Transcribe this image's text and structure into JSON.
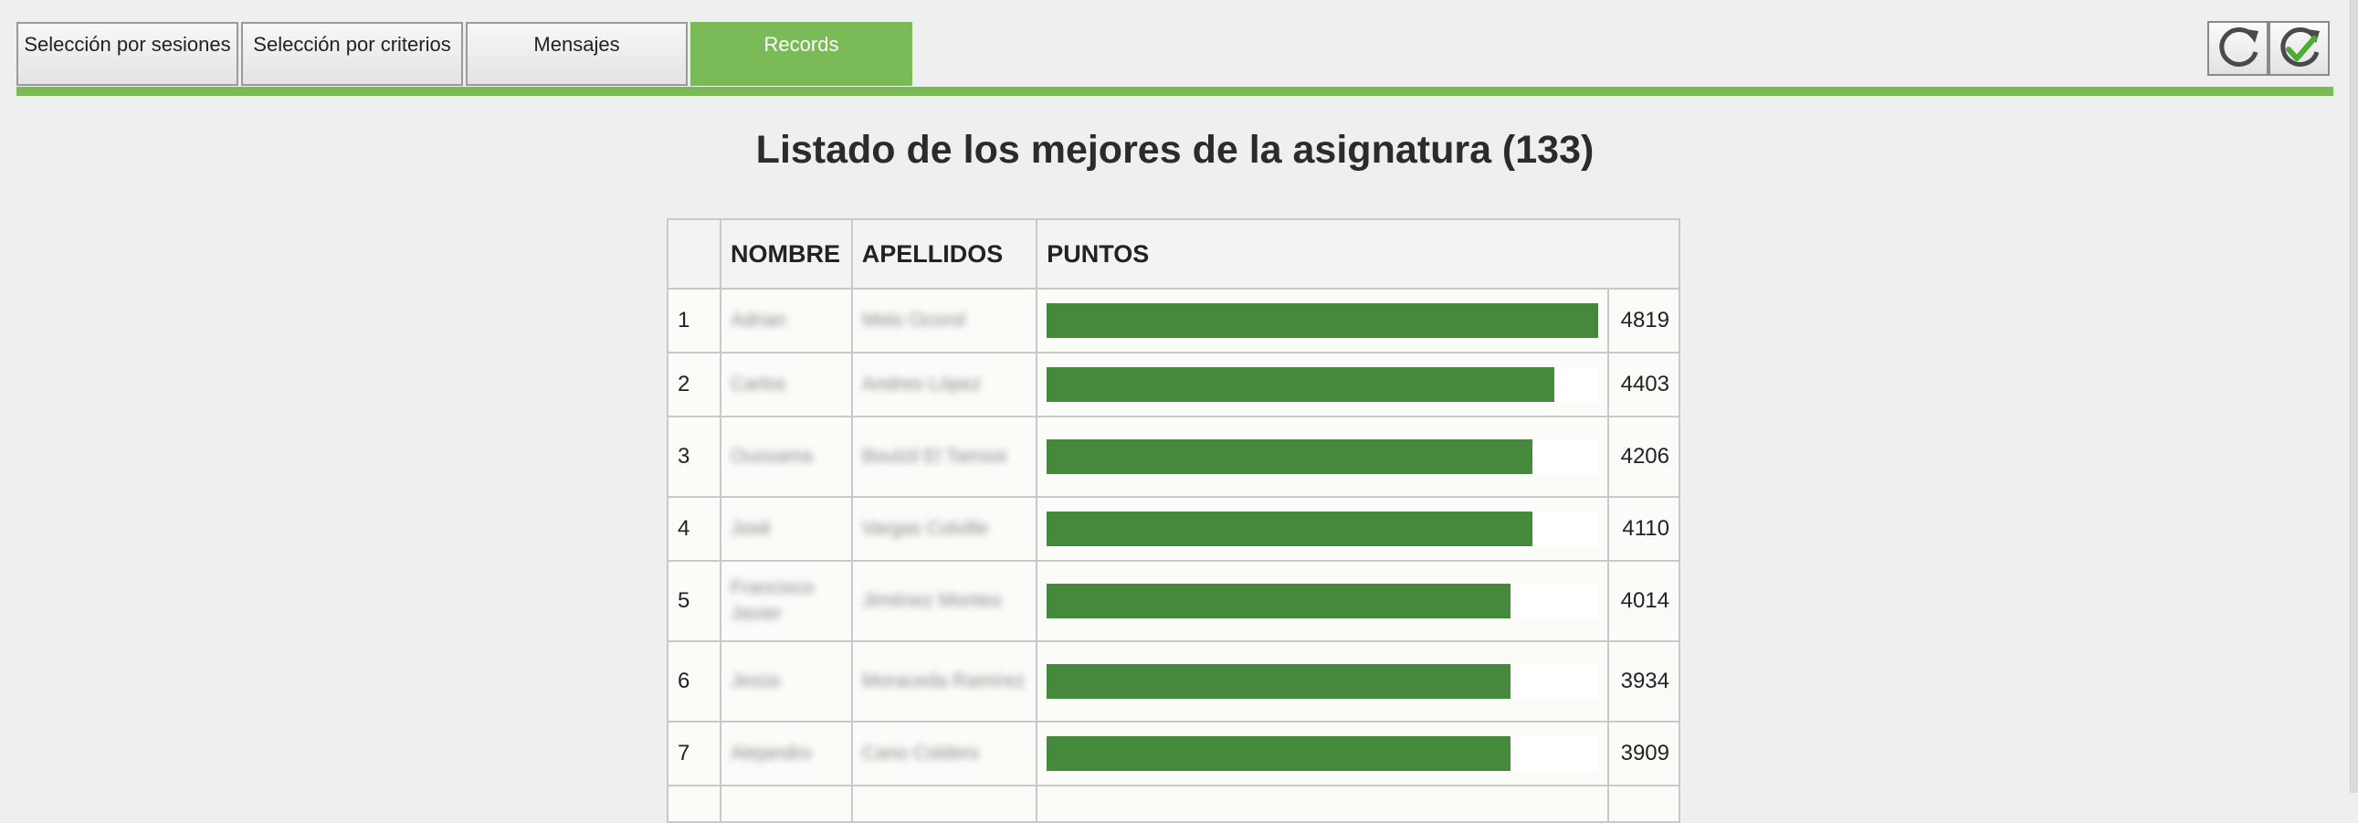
{
  "tabs": [
    {
      "label": "Selección por sesiones",
      "active": false
    },
    {
      "label": "Selección por criterios",
      "active": false
    },
    {
      "label": "Mensajes",
      "active": false
    },
    {
      "label": "Records",
      "active": true
    }
  ],
  "toolbar": {
    "refresh_icon": "refresh-icon",
    "refresh_check_icon": "refresh-check-icon"
  },
  "page_title": "Listado de los mejores de la asignatura (133)",
  "table": {
    "headers": [
      "",
      "NOMBRE",
      "APELLIDOS",
      "PUNTOS"
    ],
    "rows": [
      {
        "rank": "1",
        "nombre": "Adrian",
        "apellidos": "Melo Ocorol",
        "puntos": 4819
      },
      {
        "rank": "2",
        "nombre": "Carlos",
        "apellidos": "Andreo López",
        "puntos": 4403
      },
      {
        "rank": "3",
        "nombre": "Oussama",
        "apellidos": "Boulzil El Tamsoi",
        "puntos": 4206
      },
      {
        "rank": "4",
        "nombre": "José",
        "apellidos": "Vargas Colville",
        "puntos": 4110
      },
      {
        "rank": "5",
        "nombre": "Francisco Javier",
        "apellidos": "Jiménez Montes",
        "puntos": 4014
      },
      {
        "rank": "6",
        "nombre": "Jesús",
        "apellidos": "Moraceda Ramírez",
        "puntos": 3934
      },
      {
        "rank": "7",
        "nombre": "Alejandro",
        "apellidos": "Cano Colders",
        "puntos": 3909
      }
    ],
    "bar_fill_fractions": [
      1.0,
      0.92,
      0.88,
      0.88,
      0.84,
      0.84,
      0.84
    ]
  },
  "colors": {
    "accent_green": "#7abb58",
    "bar_green": "#46883c"
  }
}
